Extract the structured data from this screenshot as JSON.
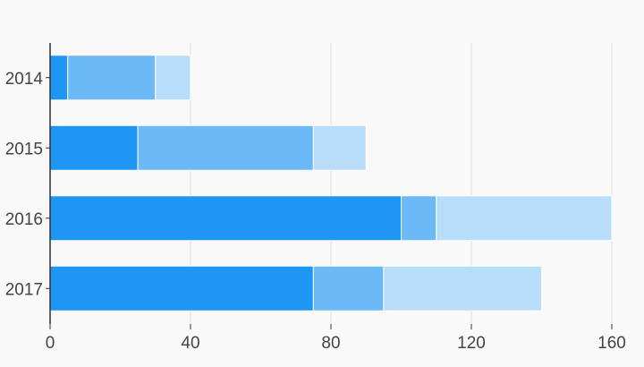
{
  "chart_data": {
    "type": "bar",
    "orientation": "horizontal",
    "stacked": true,
    "categories": [
      "2014",
      "2015",
      "2016",
      "2017"
    ],
    "series": [
      {
        "values": [
          5,
          25,
          100,
          75
        ],
        "color": "#1e96f3"
      },
      {
        "values": [
          25,
          50,
          10,
          20
        ],
        "color": "#6cb9f7"
      },
      {
        "values": [
          10,
          15,
          50,
          45
        ],
        "color": "#b7ddfb"
      }
    ],
    "xlim": [
      0,
      160
    ],
    "xticks": [
      0,
      40,
      80,
      120,
      160
    ],
    "grid": true,
    "title": "",
    "xlabel": "",
    "ylabel": ""
  },
  "colors": {
    "background": "#f9f9f9",
    "gridline": "#dddddd",
    "axis": "#333333",
    "text": "#444444",
    "bar_separator": "#ffffff"
  }
}
